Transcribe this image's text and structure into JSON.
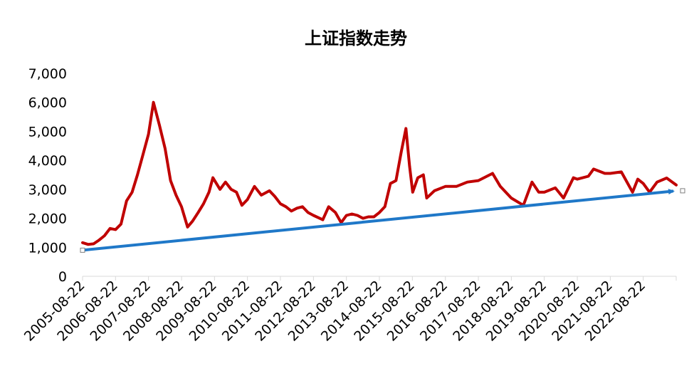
{
  "chart_data": {
    "type": "line",
    "title": "上证指数走势",
    "xlabel": "",
    "ylabel": "",
    "ylim": [
      0,
      7000
    ],
    "yticks": [
      "0",
      "1,000",
      "2,000",
      "3,000",
      "4,000",
      "5,000",
      "6,000",
      "7,000"
    ],
    "xticks": [
      "2005-08-22",
      "2006-08-22",
      "2007-08-22",
      "2008-08-22",
      "2009-08-22",
      "2010-08-22",
      "2011-08-22",
      "2012-08-22",
      "2013-08-22",
      "2014-08-22",
      "2015-08-22",
      "2016-08-22",
      "2017-08-22",
      "2018-08-22",
      "2019-08-22",
      "2020-08-22",
      "2021-08-22",
      "2022-08-22"
    ],
    "xrange": [
      "2005-08-22",
      "2023-08-22"
    ],
    "grid": false,
    "legend": "none",
    "series": [
      {
        "color": "#C00000",
        "x": [
          "2005-08-22",
          "2005-10-22",
          "2005-12-22",
          "2006-02-22",
          "2006-04-22",
          "2006-06-22",
          "2006-08-22",
          "2006-10-22",
          "2006-12-22",
          "2007-02-22",
          "2007-04-22",
          "2007-06-22",
          "2007-08-22",
          "2007-10-16",
          "2007-12-22",
          "2008-02-22",
          "2008-04-22",
          "2008-06-22",
          "2008-08-22",
          "2008-10-28",
          "2008-12-22",
          "2009-02-22",
          "2009-04-22",
          "2009-06-22",
          "2009-08-04",
          "2009-10-22",
          "2009-12-22",
          "2010-02-22",
          "2010-04-22",
          "2010-06-22",
          "2010-08-22",
          "2010-11-08",
          "2011-01-22",
          "2011-04-22",
          "2011-06-22",
          "2011-08-22",
          "2011-10-22",
          "2011-12-22",
          "2012-02-22",
          "2012-04-22",
          "2012-06-22",
          "2012-08-22",
          "2012-12-03",
          "2013-02-06",
          "2013-04-22",
          "2013-06-25",
          "2013-08-22",
          "2013-10-22",
          "2013-12-22",
          "2014-02-22",
          "2014-04-22",
          "2014-06-22",
          "2014-08-22",
          "2014-10-22",
          "2014-12-22",
          "2015-02-22",
          "2015-04-22",
          "2015-06-12",
          "2015-07-22",
          "2015-08-26",
          "2015-10-22",
          "2015-12-22",
          "2016-01-28",
          "2016-04-22",
          "2016-08-22",
          "2016-12-22",
          "2017-04-22",
          "2017-08-22",
          "2018-01-26",
          "2018-04-22",
          "2018-08-22",
          "2019-01-03",
          "2019-04-08",
          "2019-06-22",
          "2019-08-22",
          "2019-12-22",
          "2020-03-22",
          "2020-07-10",
          "2020-08-22",
          "2020-12-22",
          "2021-02-18",
          "2021-06-22",
          "2021-08-22",
          "2021-12-22",
          "2022-04-26",
          "2022-06-22",
          "2022-08-22",
          "2022-10-31",
          "2023-01-22",
          "2023-05-08",
          "2023-08-22"
        ],
        "y": [
          1160,
          1100,
          1120,
          1250,
          1400,
          1650,
          1610,
          1800,
          2600,
          2900,
          3500,
          4200,
          4900,
          6000,
          5200,
          4400,
          3300,
          2800,
          2400,
          1700,
          1900,
          2200,
          2500,
          2900,
          3400,
          3000,
          3250,
          3000,
          2900,
          2450,
          2650,
          3100,
          2800,
          2950,
          2750,
          2500,
          2400,
          2250,
          2350,
          2400,
          2200,
          2100,
          1950,
          2400,
          2200,
          1850,
          2100,
          2150,
          2100,
          2000,
          2050,
          2050,
          2200,
          2400,
          3200,
          3300,
          4300,
          5100,
          3800,
          2900,
          3400,
          3500,
          2700,
          2950,
          3100,
          3100,
          3250,
          3300,
          3550,
          3100,
          2700,
          2450,
          3250,
          2900,
          2900,
          3050,
          2700,
          3400,
          3350,
          3450,
          3700,
          3550,
          3550,
          3600,
          2900,
          3350,
          3200,
          2900,
          3250,
          3390,
          3150
        ]
      },
      {
        "color": "#1F78C8",
        "x": [
          "2005-08-22",
          "2023-08-22"
        ],
        "y": [
          900,
          2950
        ]
      }
    ]
  }
}
